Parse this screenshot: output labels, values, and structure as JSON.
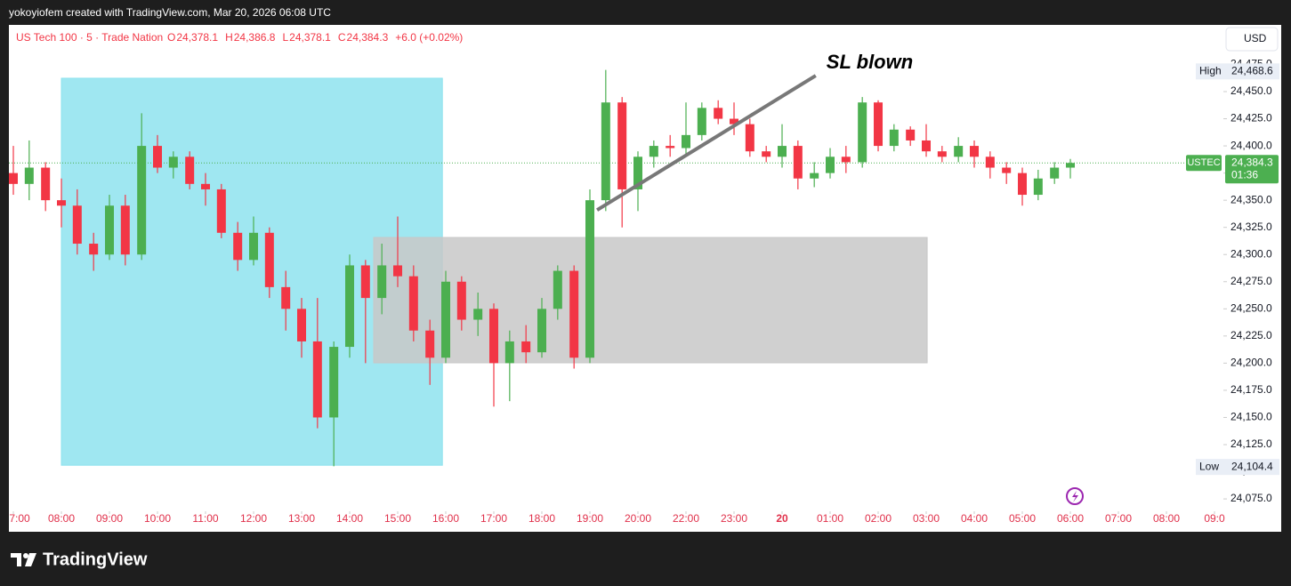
{
  "chart_data": {
    "type": "candlestick",
    "caption": "yokoyiofem created with TradingView.com, Mar 20, 2026 06:08 UTC",
    "symbol": "US Tech 100 · 5 · Trade Nation",
    "ohlc_legend": [
      {
        "name": "O",
        "value": 24378.1,
        "label": "24,378.1"
      },
      {
        "name": "H",
        "value": 24386.8,
        "label": "24,386.8"
      },
      {
        "name": "L",
        "value": 24378.1,
        "label": "24,378.1"
      },
      {
        "name": "C",
        "value": 24384.3,
        "label": "24,384.3"
      }
    ],
    "change": "+6.0 (+0.02%)",
    "currency": "USD",
    "footer": "TradingView",
    "up_color": "#4caf50",
    "down_color": "#f23645",
    "x": [
      0,
      0.33,
      0.67,
      1,
      1.33,
      1.67,
      2,
      2.33,
      2.67,
      3,
      3.33,
      3.67,
      4,
      4.33,
      4.67,
      5,
      5.33,
      5.67,
      6,
      6.33,
      6.67,
      7,
      7.33,
      7.67,
      8,
      8.33,
      8.67,
      9,
      9.33,
      9.67,
      10,
      10.33,
      10.67,
      11,
      11.33,
      11.67,
      12,
      12.33,
      12.67,
      13,
      13.33,
      13.67,
      14,
      14.33,
      14.67,
      15,
      15.33,
      15.67,
      16,
      16.33,
      16.67,
      17,
      17.33,
      17.67,
      18,
      18.33,
      18.67,
      19,
      19.33,
      19.67,
      20,
      20.33,
      20.67,
      21,
      21.33,
      21.67,
      22
    ],
    "open": [
      24375,
      24365,
      24380,
      24350,
      24345,
      24310,
      24300,
      24345,
      24300,
      24400,
      24380,
      24390,
      24365,
      24360,
      24320,
      24295,
      24320,
      24270,
      24250,
      24220,
      24150,
      24215,
      24290,
      24260,
      24290,
      24280,
      24230,
      24205,
      24275,
      24240,
      24250,
      24200,
      24220,
      24210,
      24250,
      24285,
      24205,
      24350,
      24440,
      24360,
      24390,
      24400,
      24398,
      24410,
      24435,
      24425,
      24420,
      24395,
      24390,
      24400,
      24370,
      24375,
      24390,
      24385,
      24440,
      24400,
      24415,
      24405,
      24395,
      24390,
      24400,
      24390,
      24380,
      24375,
      24355,
      24370,
      24380
    ],
    "high": [
      24400,
      24405,
      24385,
      24370,
      24360,
      24320,
      24355,
      24355,
      24430,
      24410,
      24395,
      24395,
      24375,
      24365,
      24330,
      24335,
      24325,
      24285,
      24260,
      24260,
      24220,
      24300,
      24295,
      24310,
      24335,
      24290,
      24240,
      24285,
      24280,
      24265,
      24255,
      24230,
      24235,
      24260,
      24290,
      24290,
      24360,
      24470,
      24445,
      24395,
      24405,
      24410,
      24440,
      24440,
      24442,
      24440,
      24425,
      24400,
      24420,
      24405,
      24385,
      24398,
      24400,
      24445,
      24442,
      24420,
      24418,
      24420,
      24400,
      24408,
      24405,
      24395,
      24385,
      24380,
      24378,
      24385,
      24388
    ],
    "low": [
      24355,
      24350,
      24340,
      24325,
      24300,
      24285,
      24295,
      24290,
      24295,
      24375,
      24370,
      24360,
      24345,
      24315,
      24285,
      24290,
      24260,
      24230,
      24205,
      24140,
      24105,
      24205,
      24200,
      24245,
      24270,
      24220,
      24180,
      24200,
      24230,
      24225,
      24160,
      24165,
      24200,
      24205,
      24240,
      24195,
      24200,
      24340,
      24325,
      24340,
      24380,
      24390,
      24390,
      24405,
      24420,
      24410,
      24390,
      24385,
      24380,
      24360,
      24362,
      24370,
      24375,
      24380,
      24395,
      24395,
      24400,
      24390,
      24385,
      24385,
      24380,
      24370,
      24365,
      24345,
      24350,
      24365,
      24370
    ],
    "close": [
      24365,
      24380,
      24350,
      24345,
      24310,
      24300,
      24345,
      24300,
      24400,
      24380,
      24390,
      24365,
      24360,
      24320,
      24295,
      24320,
      24270,
      24250,
      24220,
      24150,
      24215,
      24290,
      24260,
      24290,
      24280,
      24230,
      24205,
      24275,
      24240,
      24250,
      24200,
      24220,
      24210,
      24250,
      24285,
      24205,
      24350,
      24440,
      24360,
      24390,
      24400,
      24398,
      24410,
      24435,
      24425,
      24420,
      24395,
      24390,
      24400,
      24370,
      24375,
      24390,
      24385,
      24440,
      24400,
      24415,
      24405,
      24395,
      24390,
      24400,
      24390,
      24380,
      24375,
      24355,
      24370,
      24380,
      24384.3
    ],
    "xlim": [
      -0.0926,
      25.185
    ],
    "ylim": [
      24063.6,
      24511.4
    ],
    "xticks": [
      {
        "value": 0,
        "label": "7:00"
      },
      {
        "value": 1,
        "label": "08:00"
      },
      {
        "value": 2,
        "label": "09:00"
      },
      {
        "value": 3,
        "label": "10:00"
      },
      {
        "value": 4,
        "label": "11:00"
      },
      {
        "value": 5,
        "label": "12:00"
      },
      {
        "value": 6,
        "label": "13:00"
      },
      {
        "value": 7,
        "label": "14:00"
      },
      {
        "value": 8,
        "label": "15:00"
      },
      {
        "value": 9,
        "label": "16:00"
      },
      {
        "value": 10,
        "label": "17:00"
      },
      {
        "value": 11,
        "label": "18:00"
      },
      {
        "value": 12,
        "label": "19:00"
      },
      {
        "value": 13,
        "label": "20:00"
      },
      {
        "value": 14,
        "label": "22:00"
      },
      {
        "value": 15,
        "label": "23:00"
      },
      {
        "value": 16,
        "label": "20",
        "bold": true
      },
      {
        "value": 17,
        "label": "01:00"
      },
      {
        "value": 18,
        "label": "02:00"
      },
      {
        "value": 19,
        "label": "03:00"
      },
      {
        "value": 20,
        "label": "04:00"
      },
      {
        "value": 21,
        "label": "05:00"
      },
      {
        "value": 22,
        "label": "06:00"
      },
      {
        "value": 23,
        "label": "07:00"
      },
      {
        "value": 24,
        "label": "08:00"
      },
      {
        "value": 25,
        "label": "09:0"
      }
    ],
    "yticks": [
      {
        "value": 24075,
        "label": "24,075.0"
      },
      {
        "value": 24100,
        "label": "24,100.0"
      },
      {
        "value": 24125,
        "label": "24,125.0"
      },
      {
        "value": 24150,
        "label": "24,150.0"
      },
      {
        "value": 24175,
        "label": "24,175.0"
      },
      {
        "value": 24200,
        "label": "24,200.0"
      },
      {
        "value": 24225,
        "label": "24,225.0"
      },
      {
        "value": 24250,
        "label": "24,250.0"
      },
      {
        "value": 24275,
        "label": "24,275.0"
      },
      {
        "value": 24300,
        "label": "24,300.0"
      },
      {
        "value": 24325,
        "label": "24,325.0"
      },
      {
        "value": 24350,
        "label": "24,350.0"
      },
      {
        "value": 24375,
        "label": "24,375.0"
      },
      {
        "value": 24400,
        "label": "24,400.0"
      },
      {
        "value": 24425,
        "label": "24,425.0"
      },
      {
        "value": 24450,
        "label": "24,450.0"
      },
      {
        "value": 24475,
        "label": "24,475.0"
      }
    ],
    "high_marker": {
      "name": "High",
      "value": 24468.6,
      "label": "24,468.6"
    },
    "low_marker": {
      "name": "Low",
      "value": 24104.4,
      "label": "24,104.4"
    },
    "last_price": {
      "name": "USTEC",
      "value": 24384.3,
      "label": "24,384.3",
      "countdown": "01:36",
      "color": "#4caf50"
    },
    "rectangles": [
      {
        "x": [
          1,
          8.93
        ],
        "y": [
          24106,
          24462.3
        ],
        "color": "#8ee3ee"
      },
      {
        "x": [
          7.5,
          19.02
        ],
        "y": [
          24200.3,
          24315.7
        ],
        "color": "#c8c8c8"
      }
    ],
    "trend_line": {
      "x": [
        12.15,
        16.7
      ],
      "y": [
        24341,
        24464.7
      ],
      "color": "#787878",
      "label": "SL blown"
    }
  }
}
